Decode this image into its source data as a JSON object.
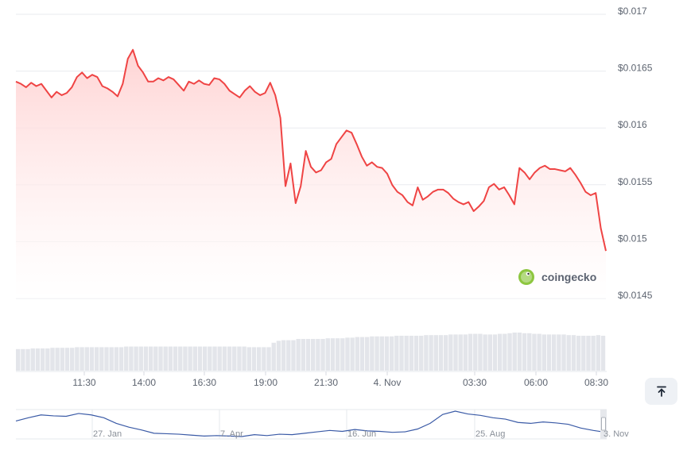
{
  "chart_data": {
    "type": "area",
    "y_axis": {
      "ticks": [
        "$0.017",
        "$0.0165",
        "$0.016",
        "$0.0155",
        "$0.015",
        "$0.0145"
      ],
      "tick_values": [
        0.017,
        0.0165,
        0.016,
        0.0155,
        0.015,
        0.0145
      ],
      "ylim": [
        0.0145,
        0.017
      ],
      "position": "right"
    },
    "x_axis": {
      "ticks": [
        "11:30",
        "14:00",
        "16:30",
        "19:00",
        "21:30",
        "4. Nov",
        "03:30",
        "06:00",
        "08:30"
      ]
    },
    "series": [
      {
        "values": [
          0.01638,
          0.01636,
          0.01633,
          0.01637,
          0.01634,
          0.01636,
          0.0163,
          0.01624,
          0.01629,
          0.01626,
          0.01628,
          0.01633,
          0.01642,
          0.01646,
          0.01641,
          0.01644,
          0.01642,
          0.01634,
          0.01632,
          0.01629,
          0.01625,
          0.01636,
          0.01658,
          0.01666,
          0.01652,
          0.01646,
          0.01638,
          0.01638,
          0.01641,
          0.01639,
          0.01642,
          0.0164,
          0.01635,
          0.0163,
          0.01638,
          0.01636,
          0.01639,
          0.01636,
          0.01635,
          0.01641,
          0.0164,
          0.01636,
          0.0163,
          0.01627,
          0.01624,
          0.0163,
          0.01634,
          0.01629,
          0.01626,
          0.01628,
          0.01637,
          0.01626,
          0.01606,
          0.01546,
          0.01566,
          0.01531,
          0.01546,
          0.01577,
          0.01563,
          0.01558,
          0.0156,
          0.01567,
          0.0157,
          0.01583,
          0.01589,
          0.01595,
          0.01593,
          0.01583,
          0.01572,
          0.01564,
          0.01567,
          0.01563,
          0.01562,
          0.01557,
          0.01547,
          0.01541,
          0.01538,
          0.01532,
          0.01529,
          0.01545,
          0.01534,
          0.01537,
          0.01541,
          0.01543,
          0.01543,
          0.0154,
          0.01535,
          0.01532,
          0.0153,
          0.01532,
          0.01524,
          0.01528,
          0.01533,
          0.01545,
          0.01548,
          0.01543,
          0.01545,
          0.01538,
          0.0153,
          0.01562,
          0.01558,
          0.01552,
          0.01558,
          0.01562,
          0.01564,
          0.01561,
          0.01561,
          0.0156,
          0.01559,
          0.01562,
          0.01556,
          0.01549,
          0.01541,
          0.01538,
          0.0154,
          0.01509,
          0.01489
        ]
      }
    ],
    "volume": {
      "values": [
        0.34,
        0.34,
        0.34,
        0.35,
        0.35,
        0.35,
        0.35,
        0.36,
        0.36,
        0.36,
        0.36,
        0.36,
        0.37,
        0.37,
        0.37,
        0.37,
        0.37,
        0.37,
        0.37,
        0.37,
        0.37,
        0.37,
        0.38,
        0.38,
        0.38,
        0.38,
        0.38,
        0.38,
        0.38,
        0.38,
        0.38,
        0.38,
        0.38,
        0.38,
        0.38,
        0.38,
        0.38,
        0.38,
        0.38,
        0.38,
        0.38,
        0.38,
        0.38,
        0.38,
        0.38,
        0.38,
        0.38,
        0.37,
        0.37,
        0.37,
        0.37,
        0.37,
        0.44,
        0.47,
        0.48,
        0.48,
        0.48,
        0.5,
        0.5,
        0.5,
        0.5,
        0.5,
        0.5,
        0.51,
        0.51,
        0.51,
        0.51,
        0.52,
        0.52,
        0.53,
        0.53,
        0.53,
        0.54,
        0.54,
        0.54,
        0.54,
        0.54,
        0.55,
        0.55,
        0.55,
        0.55,
        0.55,
        0.55,
        0.56,
        0.56,
        0.56,
        0.56,
        0.56,
        0.57,
        0.57,
        0.57,
        0.57,
        0.58,
        0.58,
        0.58,
        0.57,
        0.57,
        0.57,
        0.58,
        0.58,
        0.59,
        0.6,
        0.6,
        0.59,
        0.59,
        0.58,
        0.58,
        0.57,
        0.57,
        0.57,
        0.57,
        0.57,
        0.56,
        0.56,
        0.55,
        0.55,
        0.55,
        0.55,
        0.56,
        0.55
      ]
    },
    "navigator": {
      "ticks": [
        "27. Jan",
        "7. Apr",
        "16. Jun",
        "25. Aug",
        "3. Nov"
      ],
      "values": [
        0.0225,
        0.0232,
        0.0238,
        0.0236,
        0.0235,
        0.0241,
        0.0238,
        0.0232,
        0.022,
        0.0212,
        0.0206,
        0.0199,
        0.0198,
        0.0197,
        0.0195,
        0.0193,
        0.0194,
        0.0193,
        0.0192,
        0.0196,
        0.0194,
        0.0197,
        0.0196,
        0.0199,
        0.0202,
        0.0205,
        0.0203,
        0.0207,
        0.0204,
        0.0203,
        0.0201,
        0.0202,
        0.0208,
        0.022,
        0.0239,
        0.0246,
        0.024,
        0.0237,
        0.0232,
        0.0229,
        0.0222,
        0.022,
        0.0223,
        0.0221,
        0.0218,
        0.021,
        0.0205,
        0.0201
      ]
    },
    "legend": "none",
    "grid": true
  },
  "watermark": {
    "text": "coingecko"
  },
  "controls": {
    "scroll_top_icon": "arrow-up-to-line-icon"
  },
  "colors": {
    "line": "#ef4444",
    "fill_top": "#ffd2d2",
    "volume": "#e3e5ea",
    "navigator": "#3a5aa6"
  }
}
